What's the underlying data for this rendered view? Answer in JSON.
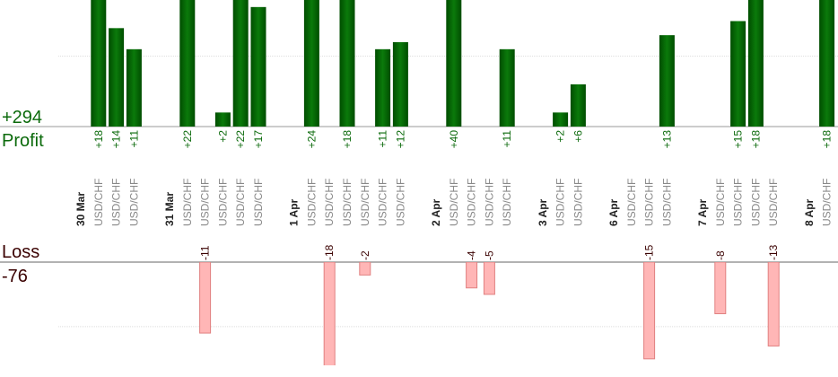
{
  "chart_data": {
    "type": "bar",
    "profit_total": {
      "value": 294,
      "label": "+294"
    },
    "profit_label": "Profit",
    "loss_label": "Loss",
    "loss_total": -76,
    "profit_color": "#0b6a0b",
    "loss_color": "#ffb6b6",
    "profit_ylim": [
      0,
      18
    ],
    "profit_yticks": [
      10
    ],
    "loss_ylim": [
      -16,
      0
    ],
    "loss_yticks": [
      -10
    ],
    "grid": true,
    "days": [
      {
        "label": "30 Mar",
        "categories": [
          "USD/CHF",
          "USD/CHF",
          "USD/CHF"
        ],
        "values": [
          18,
          14,
          11
        ],
        "value_labels": [
          "+18",
          "+14",
          "+11"
        ]
      },
      {
        "label": "31 Mar",
        "categories": [
          "USD/CHF",
          "USD/CHF",
          "USD/CHF",
          "USD/CHF",
          "USD/CHF"
        ],
        "values": [
          22,
          -11,
          2,
          22,
          17
        ],
        "value_labels": [
          "+22",
          "-11",
          "+2",
          "+22",
          "+17"
        ]
      },
      {
        "label": "1 Apr",
        "categories": [
          "USD/CHF",
          "USD/CHF",
          "USD/CHF",
          "USD/CHF",
          "USD/CHF",
          "USD/CHF"
        ],
        "values": [
          24,
          -18,
          18,
          -2,
          11,
          12
        ],
        "value_labels": [
          "+24",
          "-18",
          "+18",
          "-2",
          "+11",
          "+12"
        ]
      },
      {
        "label": "2 Apr",
        "categories": [
          "USD/CHF",
          "USD/CHF",
          "USD/CHF",
          "USD/CHF"
        ],
        "values": [
          40,
          -4,
          -5,
          11
        ],
        "value_labels": [
          "+40",
          "-4",
          "-5",
          "+11"
        ]
      },
      {
        "label": "3 Apr",
        "categories": [
          "USD/CHF",
          "USD/CHF"
        ],
        "values": [
          2,
          6
        ],
        "value_labels": [
          "+2",
          "+6"
        ]
      },
      {
        "label": "6 Apr",
        "categories": [
          "USD/CHF",
          "USD/CHF",
          "USD/CHF"
        ],
        "values": [
          null,
          -15,
          13
        ],
        "value_labels": [
          null,
          "-15",
          "+13"
        ]
      },
      {
        "label": "7 Apr",
        "categories": [
          "USD/CHF",
          "USD/CHF",
          "USD/CHF",
          "USD/CHF"
        ],
        "values": [
          -8,
          15,
          18,
          -13
        ],
        "value_labels": [
          "-8",
          "+15",
          "+18",
          "-13"
        ]
      },
      {
        "label": "8 Apr",
        "categories": [
          "USD/CHF"
        ],
        "values": [
          18
        ],
        "value_labels": [
          "+18"
        ]
      }
    ]
  }
}
